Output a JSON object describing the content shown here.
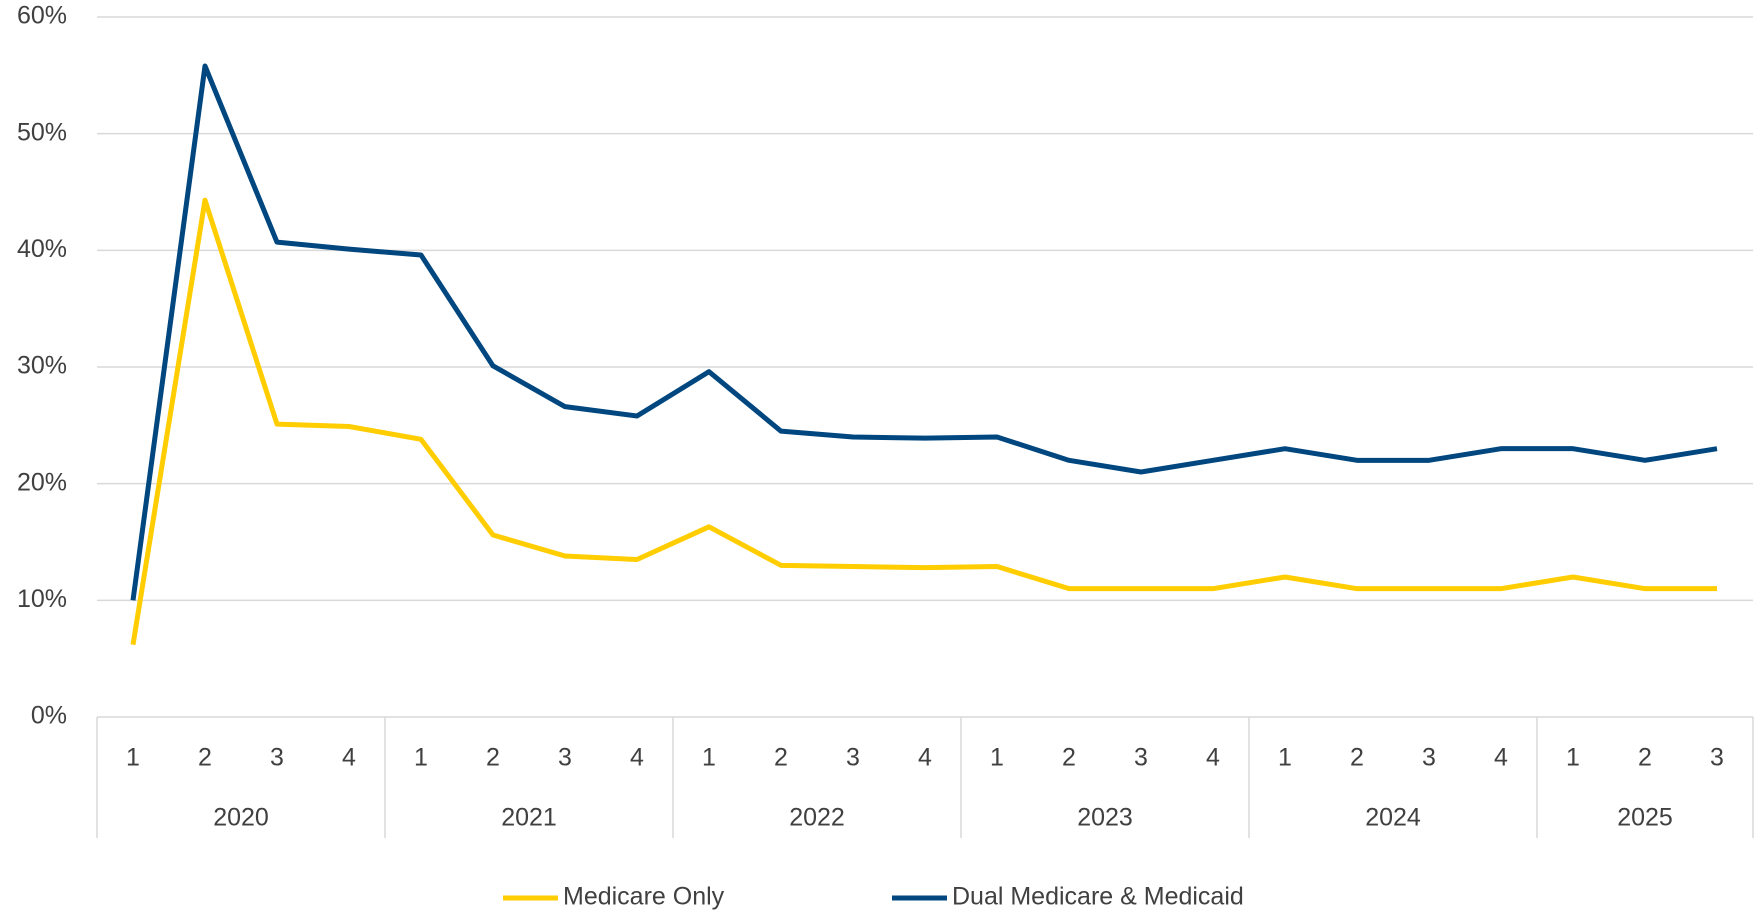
{
  "chart_data": {
    "type": "line",
    "groups": [
      {
        "label": "2020",
        "categories": [
          "1",
          "2",
          "3",
          "4"
        ]
      },
      {
        "label": "2021",
        "categories": [
          "1",
          "2",
          "3",
          "4"
        ]
      },
      {
        "label": "2022",
        "categories": [
          "1",
          "2",
          "3",
          "4"
        ]
      },
      {
        "label": "2023",
        "categories": [
          "1",
          "2",
          "3",
          "4"
        ]
      },
      {
        "label": "2024",
        "categories": [
          "1",
          "2",
          "3",
          "4"
        ]
      },
      {
        "label": "2025",
        "categories": [
          "1",
          "2",
          "3"
        ]
      }
    ],
    "series": [
      {
        "name": "Medicare Only",
        "color": "#FFCD00",
        "values": [
          6.2,
          44.3,
          25.1,
          24.9,
          23.8,
          15.6,
          13.8,
          13.5,
          16.3,
          13.0,
          12.9,
          12.8,
          12.9,
          11,
          11,
          11,
          12,
          11,
          11,
          11,
          12,
          11,
          11
        ]
      },
      {
        "name": "Dual Medicare & Medicaid",
        "color": "#00467F",
        "values": [
          10,
          55.8,
          40.7,
          40.1,
          39.6,
          30.1,
          26.6,
          25.8,
          29.6,
          24.5,
          24,
          23.9,
          24,
          22,
          21,
          22,
          23,
          22,
          22,
          23,
          23,
          22,
          23
        ]
      }
    ],
    "ylim": [
      0,
      60
    ],
    "yticks": [
      {
        "value": 0,
        "label": "0%"
      },
      {
        "value": 10,
        "label": "10%"
      },
      {
        "value": 20,
        "label": "20%"
      },
      {
        "value": 30,
        "label": "30%"
      },
      {
        "value": 40,
        "label": "40%"
      },
      {
        "value": 50,
        "label": "50%"
      },
      {
        "value": 60,
        "label": "60%"
      }
    ],
    "grid": true,
    "legend": "bottom"
  }
}
